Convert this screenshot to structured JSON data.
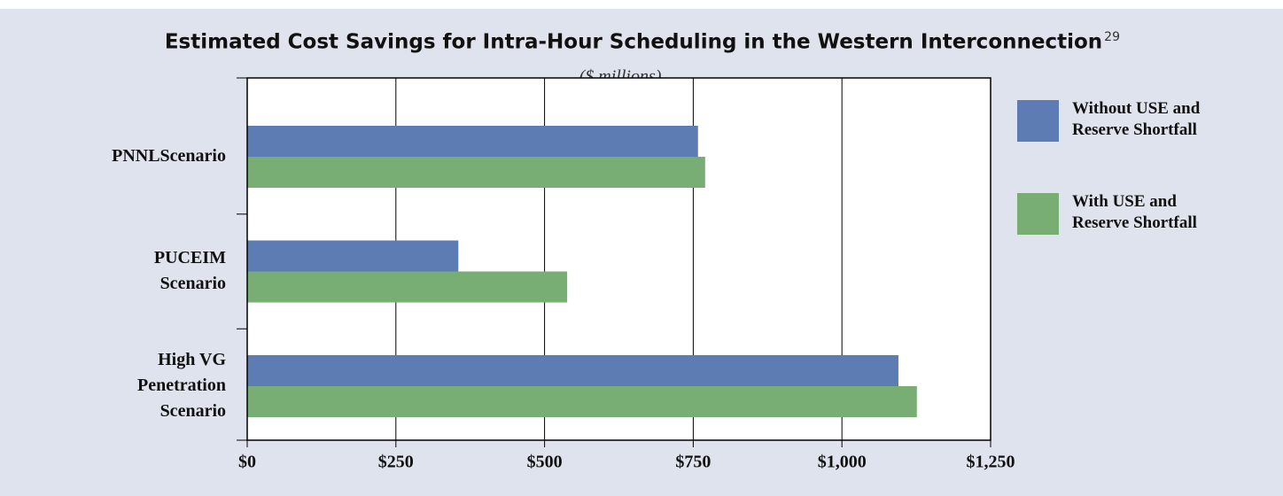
{
  "chart_data": {
    "type": "hbar",
    "title": "Estimated Cost Savings for Intra-Hour Scheduling in the Western Interconnection",
    "title_note": "29",
    "subtitle": "($ millions)",
    "categories": [
      "PNNLScenario",
      "PUCEIM Scenario",
      "High VG Penetration Scenario"
    ],
    "series": [
      {
        "name": "Without USE and Reserve Shortfall",
        "color": "#5e7cb4",
        "values": [
          758,
          355,
          1095
        ]
      },
      {
        "name": "With USE and Reserve Shortfall",
        "color": "#78ad74",
        "values": [
          770,
          538,
          1126
        ]
      }
    ],
    "xlim": [
      0,
      1250
    ],
    "xticks": [
      {
        "value": 0,
        "label": "$0"
      },
      {
        "value": 250,
        "label": "$250"
      },
      {
        "value": 500,
        "label": "$500"
      },
      {
        "value": 750,
        "label": "$750"
      },
      {
        "value": 1000,
        "label": "$1,000"
      },
      {
        "value": 1250,
        "label": "$1,250"
      }
    ],
    "grid": true,
    "legend": "right"
  }
}
